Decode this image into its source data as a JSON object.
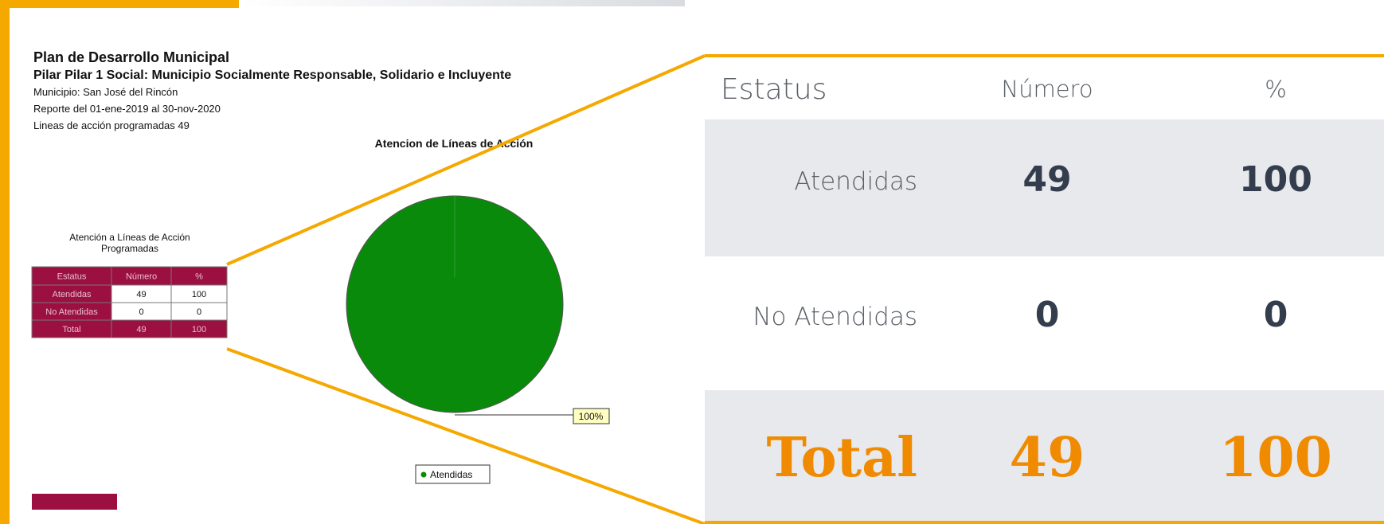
{
  "report": {
    "title": "Plan de Desarrollo Municipal",
    "pilar": "Pilar  Pilar 1 Social: Municipio Socialmente Responsable, Solidario e Incluyente",
    "municipio": "Municipio:  San José del Rincón",
    "periodo": "Reporte del 01-ene-2019  al 30-nov-2020",
    "programadas": "Lineas de acción programadas 49",
    "pie_title": "Atencion de Líneas de Acción",
    "pie_label": "100%",
    "pie_legend": "Atendidas",
    "table_caption": [
      "Atención a Líneas de Acción",
      "Programadas"
    ],
    "table": {
      "header": [
        "Estatus",
        "Número",
        "%"
      ],
      "rows": [
        [
          "Atendidas",
          "49",
          "100"
        ],
        [
          "No Atendidas",
          "0",
          "0"
        ],
        [
          "Total",
          "49",
          "100"
        ]
      ]
    }
  },
  "zoom": {
    "header": [
      "Estatus",
      "Número",
      "%"
    ],
    "rows": [
      [
        "Atendidas",
        "49",
        "100"
      ],
      [
        "No Atendidas",
        "0",
        "0"
      ],
      [
        "Total",
        "49",
        "100"
      ]
    ]
  }
}
